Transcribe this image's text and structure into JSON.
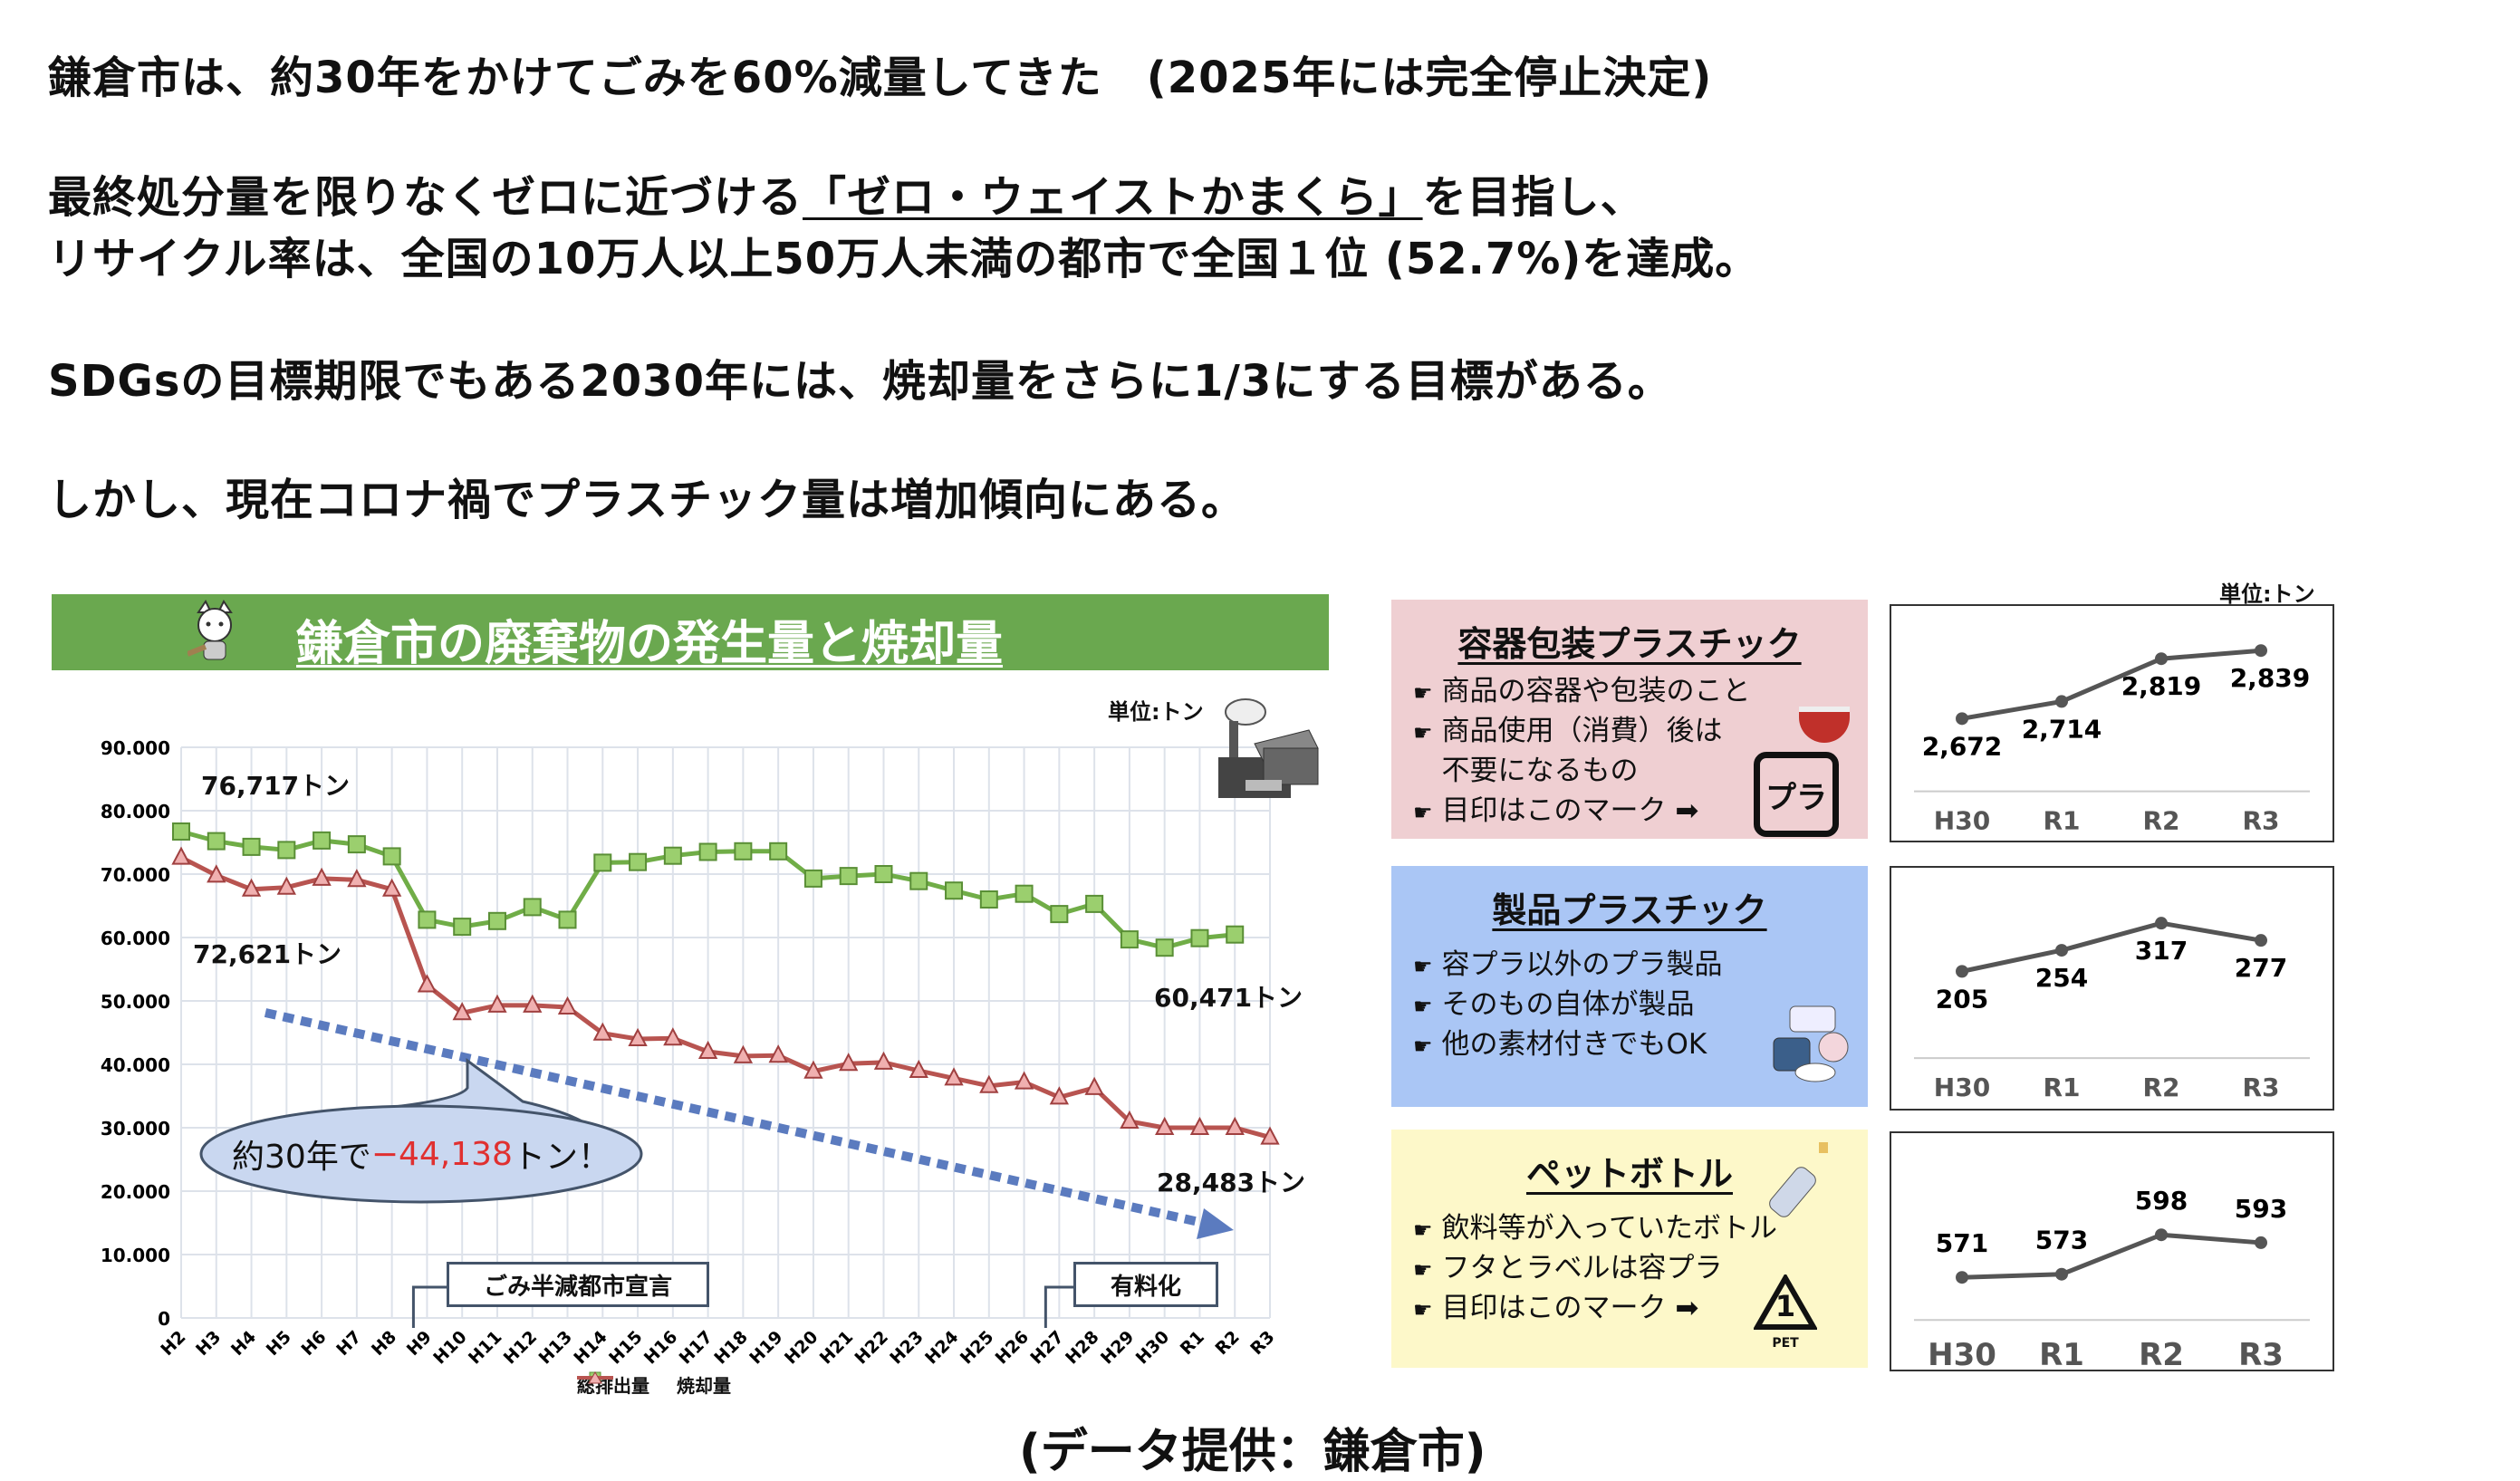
{
  "text": {
    "line1": "鎌倉市は、約30年をかけてごみを60%減量してきた　(2025年には完全停止決定)",
    "line2_pre": "最終処分量を限りなくゼロに近づける",
    "line2_ul": "「ゼロ・ウェイストかまくら」",
    "line2_post": "を目指し、",
    "line3": "リサイクル率は、全国の10万人以上50万人未満の都市で全国１位 (52.7%)を達成。",
    "line4": "SDGsの目標期限でもある2030年には、焼却量をさらに1/3にする目標がある。",
    "line5": "しかし、現在コロナ禍でプラスチック量は増加傾向にある。",
    "source": "(データ提供：鎌倉市)"
  },
  "main_chart": {
    "header_title": "鎌倉市の廃棄物の発生量と焼却量",
    "unit": "単位:トン",
    "label_total_start": "76,717トン",
    "label_incin_start": "72,621トン",
    "label_total_end": "60,471トン",
    "label_incin_end": "28,483トン",
    "bubble_pre": "約30年で",
    "bubble_value": "−44,138",
    "bubble_post": "トン！",
    "event1": "ごみ半減都市宣言",
    "event2": "有料化",
    "colors": {
      "total": "#70ad47",
      "incineration": "#b85450",
      "arrow": "#5b7bbf",
      "negative": "#e03030"
    }
  },
  "chart_data": [
    {
      "type": "line",
      "title": "鎌倉市の廃棄物の発生量と焼却量",
      "ylabel": "単位:トン",
      "ylim": [
        0,
        90000
      ],
      "yticks": [
        "0",
        "10,000",
        "20,000",
        "30,000",
        "40,000",
        "50,000",
        "60,000",
        "70,000",
        "80,000",
        "90,000"
      ],
      "categories": [
        "H2",
        "H3",
        "H4",
        "H5",
        "H6",
        "H7",
        "H8",
        "H9",
        "H10",
        "H11",
        "H12",
        "H13",
        "H14",
        "H15",
        "H16",
        "H17",
        "H18",
        "H19",
        "H20",
        "H21",
        "H22",
        "H23",
        "H24",
        "H25",
        "H26",
        "H27",
        "H28",
        "H29",
        "H30",
        "R1",
        "R2",
        "R3"
      ],
      "legend": "bottom",
      "series": [
        {
          "name": "総排出量",
          "values": [
            76717,
            75200,
            74300,
            73800,
            75300,
            74700,
            72800,
            62800,
            61700,
            62600,
            64800,
            62800,
            71800,
            71900,
            72900,
            73500,
            73600,
            73600,
            69300,
            69700,
            70000,
            68900,
            67400,
            66000,
            66900,
            63700,
            65300,
            59700,
            58400,
            59900,
            60471,
            null
          ]
        },
        {
          "name": "焼却量",
          "values": [
            72621,
            69800,
            67600,
            67900,
            69300,
            69100,
            67600,
            52500,
            48100,
            49300,
            49300,
            49000,
            44900,
            44000,
            44100,
            42000,
            41300,
            41400,
            38900,
            40100,
            40300,
            39000,
            37800,
            36600,
            37200,
            34800,
            36300,
            31000,
            30000,
            30000,
            30000,
            28483
          ]
        }
      ]
    },
    {
      "type": "line",
      "title": "容器包装プラスチック",
      "categories": [
        "H30",
        "R1",
        "R2",
        "R3"
      ],
      "values": [
        2672,
        2714,
        2819,
        2839
      ],
      "labels": [
        "2,672",
        "2,714",
        "2,819",
        "2,839"
      ],
      "unit": "単位:トン"
    },
    {
      "type": "line",
      "title": "製品プラスチック",
      "categories": [
        "H30",
        "R1",
        "R2",
        "R3"
      ],
      "values": [
        205,
        254,
        317,
        277
      ],
      "labels": [
        "205",
        "254",
        "317",
        "277"
      ]
    },
    {
      "type": "line",
      "title": "ペットボトル",
      "categories": [
        "H30",
        "R1",
        "R2",
        "R3"
      ],
      "values": [
        571,
        573,
        598,
        593
      ],
      "labels": [
        "571",
        "573",
        "598",
        "593"
      ]
    }
  ],
  "cards": [
    {
      "title": "容器包装プラスチック",
      "bg": "#efcfd2",
      "bullets": [
        "商品の容器や包装のこと",
        "商品使用（消費）後は",
        "不要になるもの",
        "目印はこのマーク ➡"
      ],
      "mark": "プラ"
    },
    {
      "title": "製品プラスチック",
      "bg": "#aac6f5",
      "bullets": [
        "容プラ以外のプラ製品",
        "そのもの自体が製品",
        "他の素材付きでもOK"
      ]
    },
    {
      "title": "ペットボトル",
      "bg": "#fdf8c9",
      "bullets": [
        "飲料等が入っていたボトル",
        "フタとラベルは容プラ",
        "目印はこのマーク ➡"
      ],
      "mark": "1",
      "mark_sub": "PET"
    }
  ],
  "hand_icon": "☛"
}
